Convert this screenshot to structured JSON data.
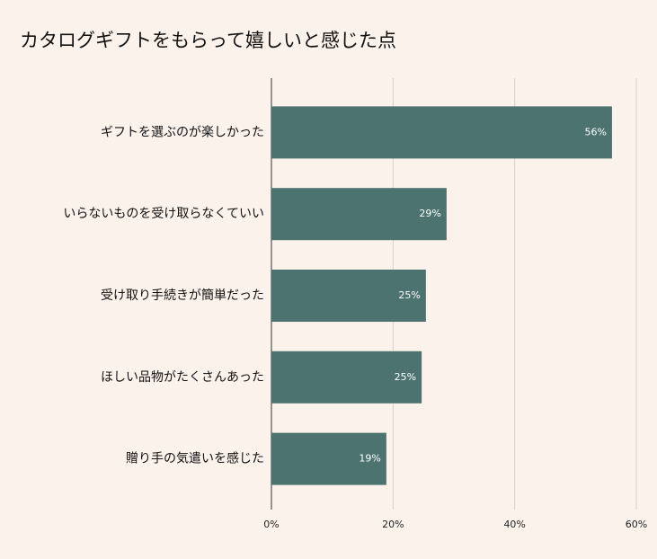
{
  "chart_data": {
    "type": "hbar",
    "title": "カタログギフトをもらって嬉しいと感じた点",
    "categories": [
      "ギフトを選ぶのが楽しかった",
      "いらないものを受け取らなくていい",
      "受け取り手続きが簡単だった",
      "ほしい品物がたくさんあった",
      "贈り手の気遣いを感じた"
    ],
    "values": [
      56,
      28.8,
      25.4,
      24.7,
      18.9
    ],
    "value_labels": [
      "56%",
      "29%",
      "25%",
      "25%",
      "19%"
    ],
    "color": "#4d7370",
    "xlim": [
      0,
      60
    ],
    "xticks": [
      {
        "value": 0,
        "label": "0%"
      },
      {
        "value": 20,
        "label": "20%"
      },
      {
        "value": 40,
        "label": "40%"
      },
      {
        "value": 60,
        "label": "60%"
      }
    ],
    "grid": true
  }
}
